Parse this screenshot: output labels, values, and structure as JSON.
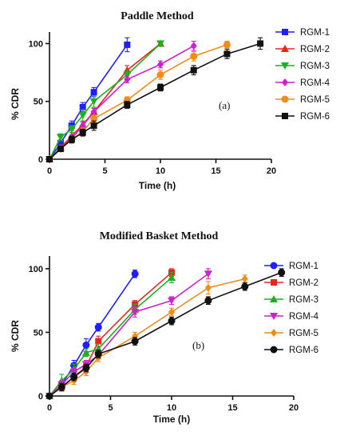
{
  "chart_data": [
    {
      "type": "line",
      "title": "Paddle Method",
      "xlabel": "Time (h)",
      "ylabel": "% CDR",
      "xlim": [
        0,
        20
      ],
      "ylim": [
        0,
        110
      ],
      "xticks": [
        0,
        5,
        10,
        15,
        20
      ],
      "yticks": [
        0,
        50,
        100
      ],
      "panel_label": "(a)",
      "legend_position": "right",
      "grid": false,
      "series": [
        {
          "name": "RGM-1",
          "color": "#1f1fff",
          "marker": "square",
          "x": [
            0,
            1,
            2,
            3,
            4,
            7
          ],
          "y": [
            0,
            14,
            29,
            45,
            58,
            99
          ],
          "err": [
            0,
            2,
            4,
            4,
            4,
            6
          ]
        },
        {
          "name": "RGM-2",
          "color": "#e8261d",
          "marker": "triangle-up",
          "x": [
            0,
            1,
            2,
            3,
            4,
            7,
            10
          ],
          "y": [
            0,
            10,
            20,
            30,
            41,
            77,
            100
          ],
          "err": [
            0,
            2,
            3,
            3,
            3,
            4,
            2
          ]
        },
        {
          "name": "RGM-3",
          "color": "#1eb01e",
          "marker": "triangle-down",
          "x": [
            0,
            1,
            2,
            3,
            4,
            7,
            10
          ],
          "y": [
            0,
            19,
            26,
            38,
            50,
            73,
            100
          ],
          "err": [
            0,
            3,
            3,
            5,
            5,
            4,
            2
          ]
        },
        {
          "name": "RGM-4",
          "color": "#cc22cc",
          "marker": "diamond",
          "x": [
            0,
            1,
            2,
            3,
            4,
            7,
            10,
            13
          ],
          "y": [
            0,
            9,
            18,
            29,
            41,
            69,
            82,
            98
          ],
          "err": [
            0,
            2,
            3,
            3,
            3,
            3,
            3,
            4
          ]
        },
        {
          "name": "RGM-5",
          "color": "#f08c1a",
          "marker": "circle",
          "x": [
            0,
            1,
            2,
            3,
            4,
            7,
            10,
            13,
            16
          ],
          "y": [
            0,
            9,
            17,
            24,
            35,
            51,
            73,
            89,
            99
          ],
          "err": [
            0,
            2,
            2,
            3,
            3,
            3,
            4,
            4,
            3
          ]
        },
        {
          "name": "RGM-6",
          "color": "#111111",
          "marker": "square",
          "x": [
            0,
            1,
            2,
            3,
            4,
            7,
            10,
            13,
            16,
            19
          ],
          "y": [
            0,
            9,
            17,
            23,
            29,
            47,
            62,
            77,
            91,
            100
          ],
          "err": [
            0,
            2,
            3,
            3,
            4,
            3,
            3,
            4,
            4,
            5
          ]
        }
      ]
    },
    {
      "type": "line",
      "title": "Modified Basket Method",
      "xlabel": "Time (h)",
      "ylabel": "% CDR",
      "xlim": [
        0,
        20
      ],
      "ylim": [
        0,
        110
      ],
      "xticks": [
        0,
        5,
        10,
        15,
        20
      ],
      "yticks": [
        0,
        50,
        100
      ],
      "panel_label": "(b)",
      "legend_position": "right",
      "grid": false,
      "series": [
        {
          "name": "RGM-1",
          "color": "#1f1fff",
          "marker": "circle",
          "x": [
            0,
            1,
            2,
            3,
            4,
            7
          ],
          "y": [
            0,
            9,
            24,
            40,
            54,
            96
          ],
          "err": [
            0,
            3,
            4,
            5,
            3,
            3
          ]
        },
        {
          "name": "RGM-2",
          "color": "#e8261d",
          "marker": "square",
          "x": [
            0,
            1,
            2,
            3,
            4,
            7,
            10
          ],
          "y": [
            0,
            7,
            15,
            23,
            43,
            72,
            97
          ],
          "err": [
            0,
            3,
            3,
            3,
            4,
            3,
            3
          ]
        },
        {
          "name": "RGM-3",
          "color": "#1eb01e",
          "marker": "triangle-up",
          "x": [
            0,
            1,
            2,
            3,
            4,
            7,
            10
          ],
          "y": [
            0,
            12,
            21,
            34,
            37,
            68,
            93
          ],
          "err": [
            0,
            5,
            4,
            3,
            4,
            4,
            4
          ]
        },
        {
          "name": "RGM-4",
          "color": "#cc22cc",
          "marker": "triangle-down",
          "x": [
            0,
            1,
            2,
            3,
            4,
            7,
            10,
            13
          ],
          "y": [
            0,
            9,
            19,
            25,
            32,
            66,
            75,
            96
          ],
          "err": [
            0,
            3,
            3,
            3,
            3,
            4,
            3,
            4
          ]
        },
        {
          "name": "RGM-5",
          "color": "#f08c1a",
          "marker": "diamond",
          "x": [
            0,
            1,
            2,
            3,
            4,
            7,
            10,
            13,
            16
          ],
          "y": [
            0,
            7,
            12,
            19,
            30,
            47,
            66,
            85,
            92
          ],
          "err": [
            0,
            3,
            3,
            3,
            3,
            3,
            3,
            5,
            3
          ]
        },
        {
          "name": "RGM-6",
          "color": "#111111",
          "marker": "circle",
          "x": [
            0,
            1,
            2,
            3,
            4,
            7,
            10,
            13,
            16,
            19
          ],
          "y": [
            0,
            7,
            15,
            22,
            33,
            43,
            59,
            75,
            86,
            97
          ],
          "err": [
            0,
            3,
            3,
            3,
            3,
            3,
            3,
            3,
            3,
            3
          ]
        }
      ]
    }
  ]
}
